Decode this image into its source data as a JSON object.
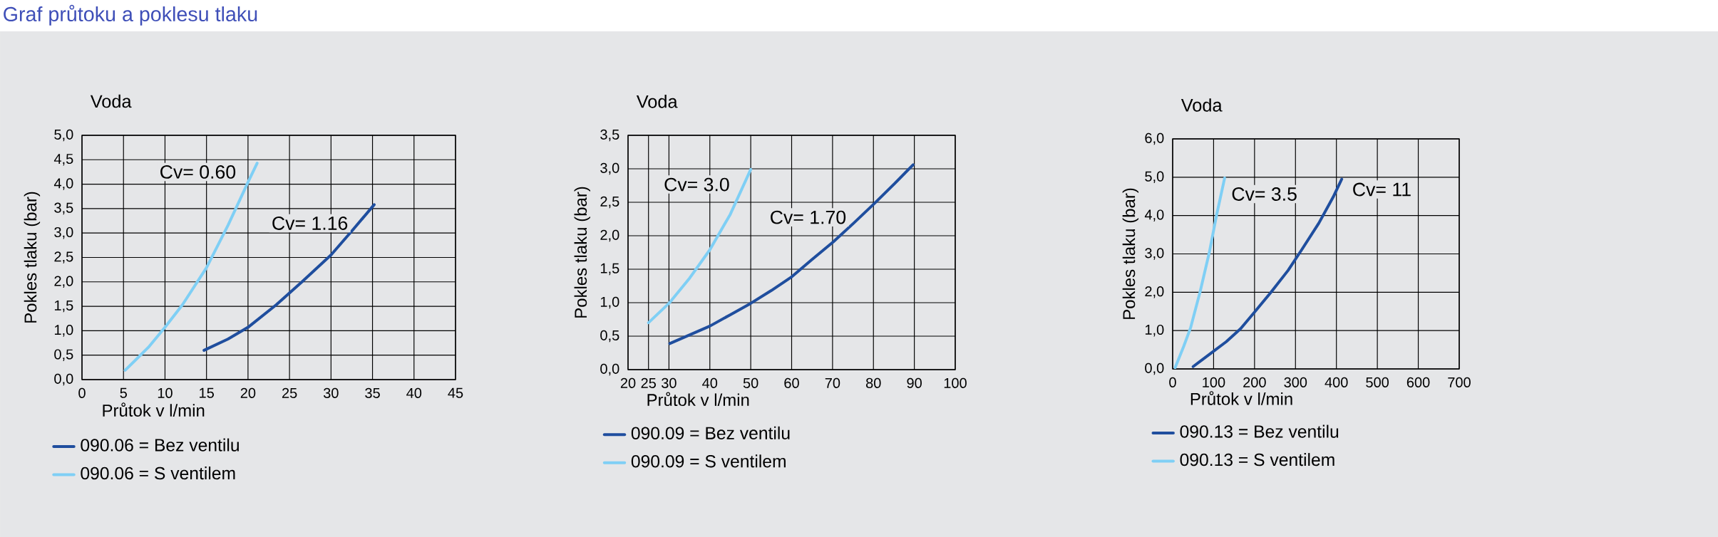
{
  "chart_data": [
    {
      "type": "line",
      "title": "Graf průtoku a poklesu tlaku",
      "subtitle": "Voda",
      "xlabel": "Průtok v l/min",
      "ylabel": "Pokles tlaku (bar)",
      "xlim": [
        0,
        45
      ],
      "ylim": [
        0,
        5
      ],
      "xticks": [
        0,
        5,
        10,
        15,
        20,
        25,
        30,
        35,
        40,
        45
      ],
      "yticks": [
        {
          "value": 0,
          "label": "0,0"
        },
        {
          "value": 0.5,
          "label": "0,5"
        },
        {
          "value": 1,
          "label": "1,0"
        },
        {
          "value": 1.5,
          "label": "1,5"
        },
        {
          "value": 2,
          "label": "2,0"
        },
        {
          "value": 2.5,
          "label": "2,5"
        },
        {
          "value": 3,
          "label": "3,0"
        },
        {
          "value": 3.5,
          "label": "3,5"
        },
        {
          "value": 4,
          "label": "4,0"
        },
        {
          "value": 4.5,
          "label": "4,5"
        },
        {
          "value": 5,
          "label": "5,0"
        }
      ],
      "grid": true,
      "legend": "bottom",
      "line_style": "solid",
      "marker": "none",
      "series": [
        {
          "name": "090.06 = Bez ventilu",
          "color": "#1f4e9e",
          "x": [
            14.7,
            17.6,
            20.0,
            23.4,
            26.5,
            30.0,
            32.7,
            35.2
          ],
          "values": [
            0.6,
            0.83,
            1.07,
            1.53,
            2.0,
            2.55,
            3.08,
            3.58
          ]
        },
        {
          "name": "090.06 = S ventilem",
          "color": "#7fcff5",
          "x": [
            5.2,
            8.0,
            10.0,
            12.1,
            15.0,
            17.6,
            20.0,
            21.1
          ],
          "values": [
            0.19,
            0.66,
            1.07,
            1.53,
            2.29,
            3.16,
            4.04,
            4.43
          ]
        }
      ],
      "annotations": [
        "Cv= 0.60",
        "Cv= 1.16"
      ]
    },
    {
      "type": "line",
      "subtitle": "Voda",
      "xlabel": "Průtok v l/min",
      "ylabel": "Pokles tlaku (bar)",
      "xlim": [
        20,
        100
      ],
      "ylim": [
        0,
        3.5
      ],
      "xticks": [
        20,
        25,
        30,
        40,
        50,
        60,
        70,
        80,
        90,
        100
      ],
      "yticks": [
        {
          "value": 0,
          "label": "0,0"
        },
        {
          "value": 0.5,
          "label": "0,5"
        },
        {
          "value": 1,
          "label": "1,0"
        },
        {
          "value": 1.5,
          "label": "1,5"
        },
        {
          "value": 2,
          "label": "2,0"
        },
        {
          "value": 2.5,
          "label": "2,5"
        },
        {
          "value": 3,
          "label": "3,0"
        },
        {
          "value": 3.5,
          "label": "3,5"
        }
      ],
      "grid": true,
      "legend": "bottom",
      "line_style": "solid",
      "marker": "none",
      "series": [
        {
          "name": "090.09 = Bez ventilu",
          "color": "#1f4e9e",
          "x": [
            30.2,
            35.1,
            40.0,
            45.0,
            50.0,
            55.0,
            60.1,
            64.9,
            70.2,
            75.2,
            80.2,
            85.2,
            89.7
          ],
          "values": [
            0.39,
            0.52,
            0.65,
            0.82,
            0.99,
            1.18,
            1.39,
            1.64,
            1.91,
            2.19,
            2.48,
            2.78,
            3.06
          ]
        },
        {
          "name": "090.09 = S ventilem",
          "color": "#7fcff5",
          "x": [
            25.0,
            30.0,
            35.1,
            40.0,
            45.0,
            50.0
          ],
          "values": [
            0.7,
            0.99,
            1.37,
            1.79,
            2.32,
            2.99
          ]
        }
      ],
      "annotations": [
        "Cv= 3.0",
        "Cv= 1.70"
      ]
    },
    {
      "type": "line",
      "subtitle": "Voda",
      "xlabel": "Průtok v l/min",
      "ylabel": "Pokles tlaku (bar)",
      "xlim": [
        0,
        700
      ],
      "ylim": [
        0,
        6
      ],
      "xticks": [
        0,
        100,
        200,
        300,
        400,
        500,
        600,
        700
      ],
      "yticks": [
        {
          "value": 0,
          "label": "0,0"
        },
        {
          "value": 1,
          "label": "1,0"
        },
        {
          "value": 2,
          "label": "2,0"
        },
        {
          "value": 3,
          "label": "3,0"
        },
        {
          "value": 4,
          "label": "4,0"
        },
        {
          "value": 5,
          "label": "5,0"
        },
        {
          "value": 6,
          "label": "6,0"
        }
      ],
      "grid": true,
      "legend": "bottom",
      "line_style": "solid",
      "marker": "none",
      "series": [
        {
          "name": "090.13 = Bez ventilu",
          "color": "#1f4e9e",
          "x": [
            50,
            96,
            131,
            166,
            200,
            241,
            282,
            316,
            357,
            392,
            413
          ],
          "values": [
            0.06,
            0.43,
            0.71,
            1.05,
            1.48,
            2.01,
            2.57,
            3.12,
            3.8,
            4.48,
            4.95
          ]
        },
        {
          "name": "090.13 = S ventilem",
          "color": "#7fcff5",
          "x": [
            6,
            27,
            44,
            67,
            90,
            108,
            127
          ],
          "values": [
            0.03,
            0.59,
            1.08,
            2.01,
            3.06,
            4.05,
            4.98
          ]
        }
      ],
      "annotations": [
        "Cv= 3.5",
        "Cv= 11"
      ]
    }
  ]
}
